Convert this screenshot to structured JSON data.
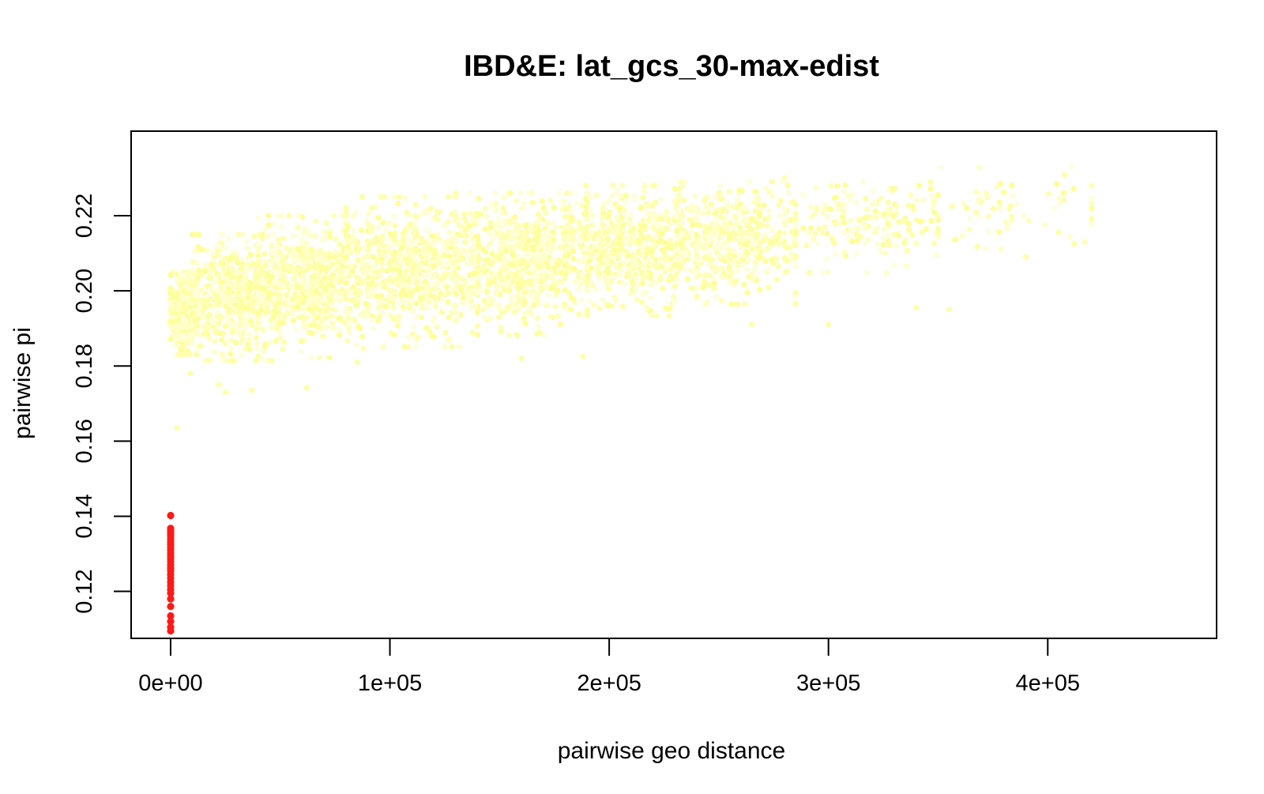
{
  "chart_data": {
    "type": "scatter",
    "title": "IBD&E: lat_gcs_30-max-edist",
    "xlabel": "pairwise geo distance",
    "ylabel": "pairwise pi",
    "xlim": [
      -18000,
      477000
    ],
    "ylim": [
      0.1075,
      0.2425
    ],
    "x_ticks": [
      0,
      100000,
      200000,
      300000,
      400000
    ],
    "x_tick_labels": [
      "0e+00",
      "1e+05",
      "2e+05",
      "3e+05",
      "4e+05"
    ],
    "y_ticks": [
      0.12,
      0.14,
      0.16,
      0.18,
      0.2,
      0.22
    ],
    "y_tick_labels": [
      "0.12",
      "0.14",
      "0.16",
      "0.18",
      "0.20",
      "0.22"
    ],
    "grid": false,
    "legend": "none",
    "colors": {
      "axis": "#000000",
      "red_points": "#ff1a1a",
      "yellow_points": [
        "#ffff99",
        "#ffffaa",
        "#ffffbb",
        "#ffffcc",
        "#fefedd"
      ]
    },
    "series": [
      {
        "color_group": "yellow",
        "clusters": [
          {
            "x": [
              0,
              12000
            ],
            "y": [
              0.184,
              0.205
            ],
            "n": 420
          },
          {
            "x": [
              10000,
              50000
            ],
            "y": [
              0.183,
              0.215
            ],
            "n": 520
          },
          {
            "x": [
              40000,
              90000
            ],
            "y": [
              0.184,
              0.22
            ],
            "n": 600
          },
          {
            "x": [
              80000,
              140000
            ],
            "y": [
              0.187,
              0.225
            ],
            "n": 640
          },
          {
            "x": [
              130000,
              190000
            ],
            "y": [
              0.19,
              0.226
            ],
            "n": 620
          },
          {
            "x": [
              180000,
              240000
            ],
            "y": [
              0.195,
              0.228
            ],
            "n": 560
          },
          {
            "x": [
              230000,
              285000
            ],
            "y": [
              0.198,
              0.229
            ],
            "n": 420
          },
          {
            "x": [
              280000,
              350000
            ],
            "y": [
              0.206,
              0.23
            ],
            "n": 180
          },
          {
            "x": [
              340000,
              420000
            ],
            "y": [
              0.21,
              0.233
            ],
            "n": 70
          }
        ],
        "outliers": [
          {
            "x": 3000,
            "y": 0.1635
          },
          {
            "x": 22000,
            "y": 0.175
          },
          {
            "x": 25000,
            "y": 0.173
          },
          {
            "x": 37000,
            "y": 0.1735
          },
          {
            "x": 62000,
            "y": 0.1742
          },
          {
            "x": 9000,
            "y": 0.178
          },
          {
            "x": 160000,
            "y": 0.182
          },
          {
            "x": 188000,
            "y": 0.1825
          },
          {
            "x": 85000,
            "y": 0.181
          },
          {
            "x": 265000,
            "y": 0.191
          },
          {
            "x": 300000,
            "y": 0.191
          },
          {
            "x": 340000,
            "y": 0.1955
          },
          {
            "x": 355000,
            "y": 0.195
          },
          {
            "x": 390000,
            "y": 0.209
          },
          {
            "x": 405000,
            "y": 0.2155
          },
          {
            "x": 412000,
            "y": 0.2125
          }
        ]
      },
      {
        "color_group": "red",
        "x": 0,
        "y": [
          0.1095,
          0.1105,
          0.112,
          0.1135,
          0.116,
          0.118,
          0.1195,
          0.1205,
          0.1215,
          0.1225,
          0.1235,
          0.1245,
          0.1255,
          0.1262,
          0.127,
          0.128,
          0.1288,
          0.1295,
          0.1302,
          0.131,
          0.1318,
          0.1325,
          0.1332,
          0.134,
          0.1348,
          0.1355,
          0.1362,
          0.1368,
          0.1402
        ]
      }
    ]
  }
}
